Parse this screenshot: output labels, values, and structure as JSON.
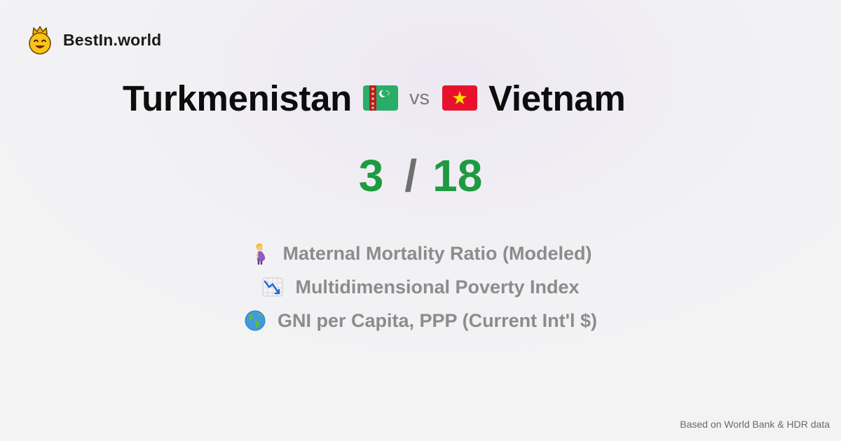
{
  "brand": {
    "name": "BestIn.world",
    "logo_icon": "crowned-smiley-icon"
  },
  "comparison": {
    "country_a": {
      "name": "Turkmenistan",
      "flag_icon": "turkmenistan-flag-icon"
    },
    "vs_label": "vs",
    "country_b": {
      "name": "Vietnam",
      "flag_icon": "vietnam-flag-icon"
    }
  },
  "score": {
    "a": "3",
    "separator": "/",
    "b": "18"
  },
  "metrics": [
    {
      "icon": "pregnant-woman-icon",
      "label": "Maternal Mortality Ratio (Modeled)"
    },
    {
      "icon": "chart-decreasing-icon",
      "label": "Multidimensional Poverty Index"
    },
    {
      "icon": "globe-icon",
      "label": "GNI per Capita, PPP (Current Int'l $)"
    }
  ],
  "colors": {
    "score": "#1e9a41",
    "muted_text": "#8c8c8c",
    "title": "#0d0d0d"
  },
  "footer": {
    "text": "Based on World Bank & HDR data"
  }
}
